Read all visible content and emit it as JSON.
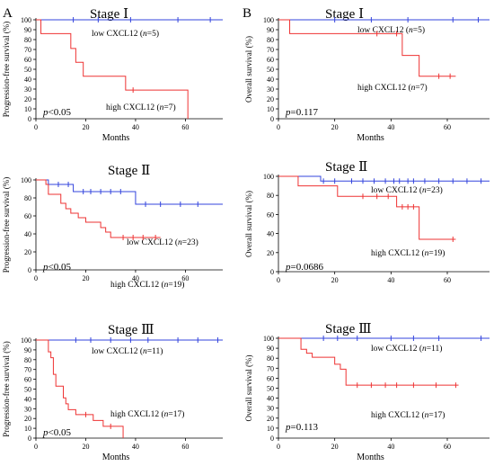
{
  "panel_letters": [
    "A",
    "B"
  ],
  "chart_data": [
    {
      "type": "line",
      "title": "Stage Ⅰ",
      "ylabel": "Progression-free survival (%)",
      "xlabel": "Months",
      "xlim": [
        0,
        75
      ],
      "ylim": [
        0,
        100
      ],
      "xticks": [
        0,
        20,
        40,
        60
      ],
      "yticks": [
        0,
        10,
        20,
        30,
        40,
        50,
        60,
        70,
        80,
        90,
        100
      ],
      "pvalue": "<0.05",
      "series": [
        {
          "name": "low CXCL12 (n=5)",
          "color": "#3344dd",
          "steps": [
            [
              0,
              100
            ],
            [
              75,
              100
            ]
          ],
          "censors": [
            15,
            25,
            38,
            57,
            70
          ]
        },
        {
          "name": "high CXCL12 (n=7)",
          "color": "#ee3333",
          "steps": [
            [
              0,
              100
            ],
            [
              2,
              86
            ],
            [
              14,
              71
            ],
            [
              16,
              57
            ],
            [
              19,
              43
            ],
            [
              36,
              29
            ],
            [
              61,
              0
            ]
          ],
          "censors": [
            39
          ]
        }
      ]
    },
    {
      "type": "line",
      "title": "Stage Ⅱ",
      "ylabel": "Progression-free survival (%)",
      "xlabel": "",
      "xlim": [
        0,
        75
      ],
      "ylim": [
        0,
        100
      ],
      "xticks": [
        0,
        20,
        40,
        60
      ],
      "yticks": [
        0,
        20,
        40,
        60,
        80,
        100
      ],
      "pvalue": "<0.05",
      "series": [
        {
          "name": "low CXCL12 (n=23)",
          "color": "#3344dd",
          "steps": [
            [
              0,
              100
            ],
            [
              5,
              95
            ],
            [
              15,
              87
            ],
            [
              40,
              73
            ],
            [
              75,
              73
            ]
          ],
          "censors": [
            9,
            13,
            19,
            22,
            26,
            30,
            34,
            44,
            50,
            58,
            65
          ]
        },
        {
          "name": "high CXCL12 (n=19)",
          "color": "#ee3333",
          "steps": [
            [
              0,
              100
            ],
            [
              4,
              95
            ],
            [
              5,
              84
            ],
            [
              10,
              74
            ],
            [
              12,
              68
            ],
            [
              14,
              63
            ],
            [
              17,
              58
            ],
            [
              20,
              53
            ],
            [
              26,
              47
            ],
            [
              28,
              42
            ],
            [
              30,
              36
            ],
            [
              50,
              36
            ]
          ],
          "censors": [
            35,
            39,
            43,
            48
          ]
        }
      ]
    },
    {
      "type": "line",
      "title": "Stage Ⅲ",
      "ylabel": "Progression-free survival (%)",
      "xlabel": "Months",
      "xlim": [
        0,
        75
      ],
      "ylim": [
        0,
        100
      ],
      "xticks": [
        0,
        20,
        40,
        60
      ],
      "yticks": [
        0,
        10,
        20,
        30,
        40,
        50,
        60,
        70,
        80,
        90,
        100
      ],
      "pvalue": "<0.05",
      "series": [
        {
          "name": "low CXCL12 (n=11)",
          "color": "#3344dd",
          "steps": [
            [
              0,
              100
            ],
            [
              75,
              100
            ]
          ],
          "censors": [
            16,
            22,
            30,
            38,
            45,
            57,
            65,
            73
          ]
        },
        {
          "name": "high CXCL12 (n=17)",
          "color": "#ee3333",
          "steps": [
            [
              0,
              100
            ],
            [
              5,
              88
            ],
            [
              6,
              82
            ],
            [
              7,
              65
            ],
            [
              8,
              53
            ],
            [
              11,
              41
            ],
            [
              12,
              35
            ],
            [
              13,
              29
            ],
            [
              16,
              24
            ],
            [
              23,
              18
            ],
            [
              27,
              12
            ],
            [
              35,
              0
            ]
          ],
          "censors": [
            20,
            30
          ]
        }
      ]
    },
    {
      "type": "line",
      "title": "Stage Ⅰ",
      "ylabel": "Overall survival (%)",
      "xlabel": "Months",
      "xlim": [
        0,
        75
      ],
      "ylim": [
        0,
        100
      ],
      "xticks": [
        0,
        20,
        40,
        60
      ],
      "yticks": [
        0,
        10,
        20,
        30,
        40,
        50,
        60,
        70,
        80,
        90,
        100
      ],
      "pvalue": "=0.117",
      "series": [
        {
          "name": "low CXCL12 (n=5)",
          "color": "#3344dd",
          "steps": [
            [
              0,
              100
            ],
            [
              75,
              100
            ]
          ],
          "censors": [
            20,
            33,
            46,
            62,
            71
          ]
        },
        {
          "name": "high CXCL12 (n=7)",
          "color": "#ee3333",
          "steps": [
            [
              0,
              100
            ],
            [
              4,
              86
            ],
            [
              44,
              64
            ],
            [
              50,
              43
            ],
            [
              63,
              43
            ]
          ],
          "censors": [
            35,
            42,
            57,
            61
          ]
        }
      ]
    },
    {
      "type": "line",
      "title": "Stage Ⅱ",
      "ylabel": "Overall survival (%)",
      "xlabel": "",
      "xlim": [
        0,
        75
      ],
      "ylim": [
        0,
        100
      ],
      "xticks": [
        0,
        20,
        40,
        60
      ],
      "yticks": [
        0,
        20,
        40,
        60,
        80,
        100
      ],
      "pvalue": "=0.0686",
      "series": [
        {
          "name": "low CXCL12 (n=23)",
          "color": "#3344dd",
          "steps": [
            [
              0,
              100
            ],
            [
              15,
              95
            ],
            [
              75,
              95
            ]
          ],
          "censors": [
            16,
            20,
            26,
            30,
            34,
            38,
            41,
            43,
            46,
            48,
            52,
            57,
            62,
            67,
            72
          ]
        },
        {
          "name": "high CXCL12 (n=19)",
          "color": "#ee3333",
          "steps": [
            [
              0,
              100
            ],
            [
              7,
              90
            ],
            [
              21,
              79
            ],
            [
              42,
              68
            ],
            [
              50,
              34
            ],
            [
              63,
              34
            ]
          ],
          "censors": [
            30,
            35,
            39,
            44,
            46,
            48,
            62
          ]
        }
      ]
    },
    {
      "type": "line",
      "title": "Stage Ⅲ",
      "ylabel": "Overall survival (%)",
      "xlabel": "Months",
      "xlim": [
        0,
        75
      ],
      "ylim": [
        0,
        100
      ],
      "xticks": [
        0,
        20,
        40,
        60
      ],
      "yticks": [
        0,
        10,
        20,
        30,
        40,
        50,
        60,
        70,
        80,
        90,
        100
      ],
      "pvalue": "=0.113",
      "series": [
        {
          "name": "low CXCL12 (n=11)",
          "color": "#3344dd",
          "steps": [
            [
              0,
              100
            ],
            [
              75,
              100
            ]
          ],
          "censors": [
            16,
            21,
            28,
            40,
            48,
            57,
            72
          ]
        },
        {
          "name": "high CXCL12 (n=17)",
          "color": "#ee3333",
          "steps": [
            [
              0,
              100
            ],
            [
              8,
              89
            ],
            [
              10,
              85
            ],
            [
              12,
              81
            ],
            [
              20,
              74
            ],
            [
              22,
              69
            ],
            [
              24,
              53
            ],
            [
              64,
              53
            ]
          ],
          "censors": [
            28,
            33,
            38,
            42,
            48,
            56,
            63
          ]
        }
      ]
    }
  ]
}
